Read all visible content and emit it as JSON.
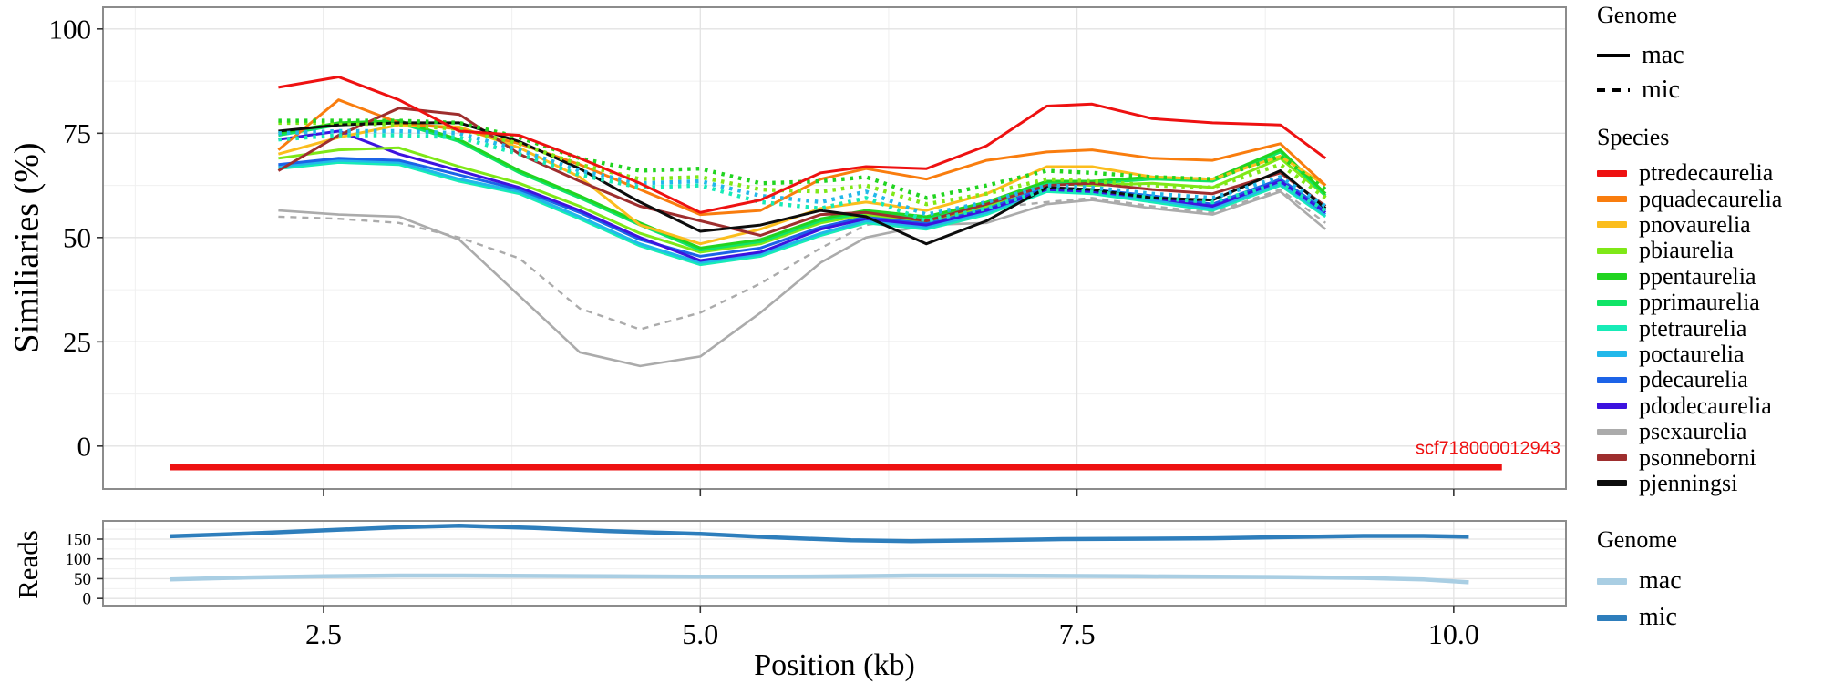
{
  "chart_data": [
    {
      "type": "line",
      "title": "",
      "ylabel": "Similiaries (%)",
      "xlabel": "Position (kb)",
      "ylim": [
        -10.3,
        105.2
      ],
      "xlim": [
        1.036,
        10.745
      ],
      "y_ticks": [
        0,
        25,
        50,
        75,
        100
      ],
      "x_ticks": [
        2.5,
        5.0,
        7.5,
        10.0
      ],
      "x_tick_labels": [
        "2.5",
        "5.0",
        "7.5",
        "10.0"
      ],
      "grid": "on",
      "legend_position": "right",
      "x": [
        2.2,
        2.6,
        3.0,
        3.4,
        3.8,
        4.2,
        4.6,
        5.0,
        5.4,
        5.8,
        6.1,
        6.5,
        6.9,
        7.3,
        7.6,
        8.0,
        8.4,
        8.85,
        9.15
      ],
      "series": [
        {
          "name": "psexaurelia",
          "genome": "mac",
          "color": "#ababab",
          "dash": "solid",
          "width": 2.6,
          "values": [
            56.5,
            55.5,
            55,
            49.5,
            36,
            22.5,
            19.2,
            21.5,
            32,
            44,
            50,
            53,
            53.5,
            58,
            59,
            57,
            55.5,
            61,
            52
          ]
        },
        {
          "name": "psexaurelia_mic",
          "genome": "mic",
          "color": "#ababab",
          "dash": "dash",
          "width": 2.4,
          "values": [
            55,
            54.5,
            53.5,
            50,
            45,
            33,
            28,
            32,
            39,
            47.5,
            53,
            55,
            57,
            58.5,
            59.5,
            57.5,
            56,
            61.5,
            53.5
          ]
        },
        {
          "name": "ptetraurelia",
          "genome": "mac",
          "color": "#17ebb7",
          "dash": "solid",
          "width": 3,
          "values": [
            66.5,
            68,
            67.5,
            63.5,
            60.5,
            54.5,
            48,
            43.5,
            45.5,
            50.5,
            53.5,
            52,
            55.5,
            61,
            60.5,
            58.5,
            56.5,
            62.5,
            55
          ]
        },
        {
          "name": "poctaurelia",
          "genome": "mac",
          "color": "#22b8ea",
          "dash": "solid",
          "width": 3,
          "values": [
            67,
            68.5,
            68,
            64,
            61,
            55,
            48.5,
            44,
            46,
            51,
            54,
            52.5,
            56,
            61.5,
            61,
            59,
            57,
            63,
            55.5
          ]
        },
        {
          "name": "pdecaurelia",
          "genome": "mac",
          "color": "#1c63e7",
          "dash": "solid",
          "width": 3,
          "values": [
            67.5,
            69,
            68.5,
            65,
            61.5,
            56,
            49.5,
            45.5,
            47.5,
            52.5,
            55,
            53.5,
            57,
            62,
            61.5,
            60,
            58,
            64,
            56.5
          ]
        },
        {
          "name": "pdodecaurelia",
          "genome": "mac",
          "color": "#3c13df",
          "dash": "solid",
          "width": 3,
          "values": [
            73.5,
            75.5,
            70,
            66,
            62,
            56.5,
            50,
            44.5,
            46.5,
            52,
            54.5,
            53,
            56.5,
            61.5,
            61,
            59.5,
            57.5,
            63.5,
            56
          ]
        },
        {
          "name": "pbiaurelia",
          "genome": "mac",
          "color": "#7fe817",
          "dash": "solid",
          "width": 3,
          "values": [
            69,
            71,
            71.5,
            67,
            63,
            57.5,
            51,
            46.5,
            48.5,
            53.5,
            55.5,
            54,
            57.5,
            63,
            62.5,
            63,
            62,
            69,
            60
          ]
        },
        {
          "name": "pprimaurelia",
          "genome": "mac",
          "color": "#10e467",
          "dash": "solid",
          "width": 3,
          "values": [
            74.5,
            77,
            77.5,
            73,
            65.5,
            59.5,
            53,
            47,
            49,
            54,
            56,
            54.5,
            58,
            63,
            63,
            64,
            63.5,
            70.5,
            60
          ]
        },
        {
          "name": "ppentaurelia",
          "genome": "mac",
          "color": "#21d420",
          "dash": "solid",
          "width": 3,
          "values": [
            75,
            77.5,
            78,
            73.5,
            66,
            60,
            53.5,
            47.5,
            49.5,
            54.5,
            56.5,
            55,
            58.5,
            63.5,
            63.5,
            64.5,
            64,
            71,
            60.5
          ]
        },
        {
          "name": "pnovaurelia",
          "genome": "mac",
          "color": "#fbbd1d",
          "dash": "solid",
          "width": 3,
          "values": [
            70,
            74,
            77,
            76.5,
            71.5,
            64.5,
            53,
            48.5,
            52,
            57,
            58.5,
            56.5,
            60.5,
            67,
            67,
            64.5,
            64,
            69.5,
            62.5
          ]
        },
        {
          "name": "pquadecaurelia",
          "genome": "mac",
          "color": "#f97d0e",
          "dash": "solid",
          "width": 3,
          "values": [
            71,
            83,
            77.5,
            76,
            72.5,
            67.5,
            61.5,
            55.5,
            56.5,
            64,
            66.5,
            64,
            68.5,
            70.5,
            71,
            69,
            68.5,
            72.5,
            62.5
          ]
        },
        {
          "name": "psonneborni",
          "genome": "mac",
          "color": "#9e2e2e",
          "dash": "solid",
          "width": 3,
          "values": [
            66,
            74.5,
            81,
            79.5,
            70,
            63.5,
            57.5,
            54,
            50.5,
            55.5,
            56,
            54,
            58,
            62.5,
            63,
            61.5,
            60.5,
            65.5,
            57.5
          ]
        },
        {
          "name": "pjenningsi",
          "genome": "mac",
          "color": "#0d0d0d",
          "dash": "solid",
          "width": 3,
          "values": [
            75.5,
            77,
            77.5,
            77.5,
            73,
            66.5,
            58.5,
            51.5,
            53,
            56.5,
            55,
            48.5,
            54,
            62,
            61.5,
            59.5,
            59,
            66,
            57
          ]
        },
        {
          "name": "ptetraurelia_mic",
          "genome": "mic",
          "color": "#17ebb7",
          "dash": "dot",
          "width": 4.4,
          "values": [
            73.5,
            74.5,
            74.5,
            74,
            70,
            65,
            62,
            62.5,
            58.5,
            57,
            59.5,
            54,
            57,
            61.5,
            61,
            59.5,
            58.5,
            63,
            56.5
          ]
        },
        {
          "name": "poctaurelia_mic",
          "genome": "mic",
          "color": "#22b8ea",
          "dash": "dot",
          "width": 4.4,
          "values": [
            75,
            75.5,
            75.5,
            75,
            71,
            66,
            63,
            63.5,
            60,
            58.5,
            61,
            55.5,
            58.5,
            62.5,
            62,
            60.5,
            59.5,
            64.5,
            57.5
          ]
        },
        {
          "name": "pbiaurelia_mic",
          "genome": "mic",
          "color": "#7fe817",
          "dash": "dot",
          "width": 4.4,
          "values": [
            77.5,
            77.5,
            77,
            76,
            72.5,
            67.5,
            64,
            64.5,
            61.5,
            61,
            62.5,
            58,
            60.5,
            64,
            63.5,
            62.5,
            62,
            67.5,
            59.5
          ]
        },
        {
          "name": "ppentaurelia_mic",
          "genome": "mic",
          "color": "#21d420",
          "dash": "dot",
          "width": 4.4,
          "values": [
            78,
            78,
            78,
            77.5,
            74,
            69,
            66,
            66.5,
            63,
            63.5,
            64.5,
            59.5,
            62.5,
            66,
            65.5,
            64.5,
            64,
            69.5,
            61.5
          ]
        },
        {
          "name": "ptredecaurelia",
          "genome": "mac",
          "color": "#ee1111",
          "dash": "solid",
          "width": 3,
          "values": [
            86,
            88.5,
            83,
            75.5,
            74.5,
            69,
            63,
            56,
            59,
            65.5,
            67,
            66.5,
            72,
            81.5,
            82,
            78.5,
            77.5,
            77,
            69
          ]
        }
      ],
      "annotation": {
        "label": "scf718000012943",
        "color": "#ee1111",
        "x_start": 1.48,
        "x_end": 10.32,
        "y": -5,
        "bar_width": 7.5
      }
    },
    {
      "type": "line",
      "title": "",
      "ylabel": "Reads",
      "xlabel": "Position (kb)",
      "ylim": [
        -18,
        196
      ],
      "xlim": [
        1.036,
        10.745
      ],
      "y_ticks": [
        0,
        50,
        100,
        150
      ],
      "x_ticks": [
        2.5,
        5.0,
        7.5,
        10.0
      ],
      "grid": "on",
      "legend_position": "right",
      "x": [
        1.48,
        2.0,
        2.5,
        3.0,
        3.4,
        3.9,
        4.4,
        5.0,
        5.5,
        6.0,
        6.4,
        6.9,
        7.4,
        7.9,
        8.4,
        8.9,
        9.4,
        9.8,
        10.1
      ],
      "series": [
        {
          "name": "mac",
          "genome": "mac",
          "color": "#a9cee3",
          "dash": "solid",
          "width": 4.5,
          "values": [
            48,
            53,
            56,
            58,
            58,
            57,
            56,
            55,
            55,
            56,
            58,
            58,
            57,
            56,
            55,
            54,
            52,
            48,
            41
          ]
        },
        {
          "name": "mic",
          "genome": "mic",
          "color": "#2e7ebc",
          "dash": "solid",
          "width": 4.5,
          "values": [
            157,
            164,
            172,
            180,
            184,
            178,
            170,
            163,
            154,
            147,
            145,
            147,
            150,
            151,
            152,
            155,
            158,
            158,
            156
          ]
        }
      ]
    }
  ],
  "axes": {
    "similarity_y_title": "Similiaries (%)",
    "reads_y_title": "Reads",
    "x_title": "Position (kb)"
  },
  "legends": {
    "genome": {
      "title": "Genome",
      "items": [
        {
          "label": "mac",
          "style": "solid"
        },
        {
          "label": "mic",
          "style": "dashed"
        }
      ]
    },
    "species": {
      "title": "Species",
      "items": [
        {
          "label": "ptredecaurelia",
          "color": "#ee1111"
        },
        {
          "label": "pquadecaurelia",
          "color": "#f97d0e"
        },
        {
          "label": "pnovaurelia",
          "color": "#fbbd1d"
        },
        {
          "label": "pbiaurelia",
          "color": "#7fe817"
        },
        {
          "label": "ppentaurelia",
          "color": "#21d420"
        },
        {
          "label": "pprimaurelia",
          "color": "#10e467"
        },
        {
          "label": "ptetraurelia",
          "color": "#17ebb7"
        },
        {
          "label": "poctaurelia",
          "color": "#22b8ea"
        },
        {
          "label": "pdecaurelia",
          "color": "#1c63e7"
        },
        {
          "label": "pdodecaurelia",
          "color": "#3c13df"
        },
        {
          "label": "psexaurelia",
          "color": "#ababab"
        },
        {
          "label": "psonneborni",
          "color": "#9e2e2e"
        },
        {
          "label": "pjenningsi",
          "color": "#0d0d0d"
        }
      ]
    },
    "reads_genome": {
      "title": "Genome",
      "items": [
        {
          "label": "mac",
          "color": "#a9cee3"
        },
        {
          "label": "mic",
          "color": "#2e7ebc"
        }
      ]
    }
  },
  "colors": {
    "grid_major": "#e3e3e3",
    "grid_minor": "#f0f0f0",
    "panel_border": "#8c8c8c",
    "tick": "#333333",
    "text": "#000000"
  }
}
